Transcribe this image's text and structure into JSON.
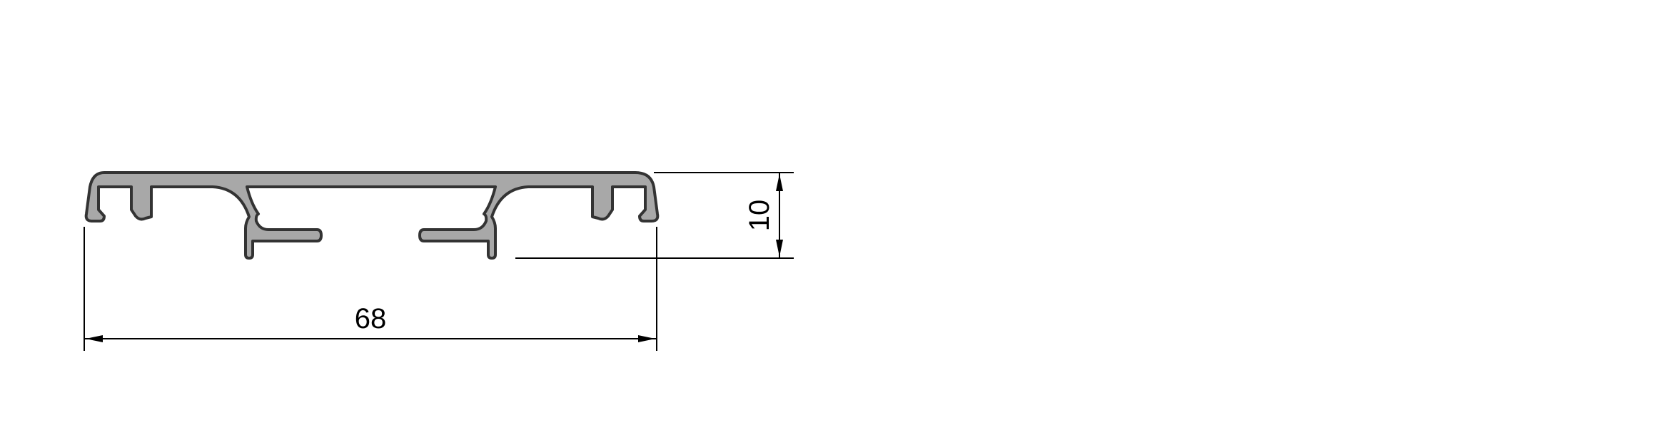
{
  "drawing": {
    "type": "aluminium profile cross-section",
    "profile_fill": "#a8a8a8",
    "profile_stroke": "#333333",
    "dimensions": {
      "width_label": "68",
      "height_label": "10"
    }
  }
}
